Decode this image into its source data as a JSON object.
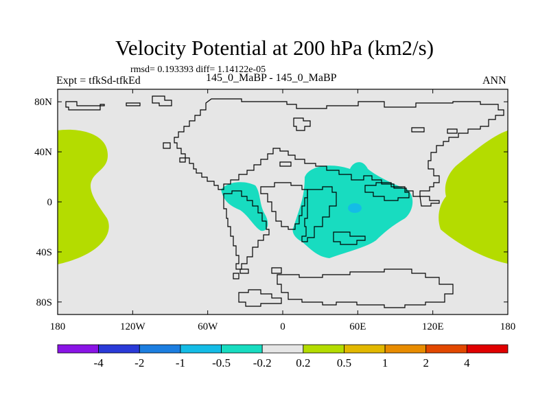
{
  "chart_data": {
    "type": "contour-map",
    "title": "Velocity Potential at 200 hPa (km2/s)",
    "stats_label": "rmsd= 0.193393 diff= 1.14122e-05",
    "left_label": "Expt = tfkSd-tfkEd",
    "center_label": "145_0_MaBP - 145_0_MaBP",
    "right_label": "ANN",
    "x_range": [
      -180,
      180
    ],
    "y_range": [
      -90,
      90
    ],
    "x_ticks": [
      {
        "value": -180,
        "label": "180"
      },
      {
        "value": -120,
        "label": "120W"
      },
      {
        "value": -60,
        "label": "60W"
      },
      {
        "value": 0,
        "label": "0"
      },
      {
        "value": 60,
        "label": "60E"
      },
      {
        "value": 120,
        "label": "120E"
      },
      {
        "value": 180,
        "label": "180"
      }
    ],
    "y_ticks": [
      {
        "value": 80,
        "label": "80N"
      },
      {
        "value": 40,
        "label": "40N"
      },
      {
        "value": 0,
        "label": "0"
      },
      {
        "value": -40,
        "label": "40S"
      },
      {
        "value": -80,
        "label": "80S"
      }
    ],
    "background_color": "#e6e6e6",
    "colorbar": {
      "colors": [
        "#8a14e6",
        "#2a3ad8",
        "#1c7ee0",
        "#14bce6",
        "#18dcc0",
        "#e6e6e6",
        "#b4dc00",
        "#e2b800",
        "#e88c00",
        "#e24800",
        "#e00000"
      ],
      "labels": [
        "-4",
        "-2",
        "-1",
        "-0.5",
        "-0.2",
        "0.2",
        "0.5",
        "1",
        "2",
        "4"
      ]
    },
    "filled_regions": [
      {
        "name": "positive-west",
        "level": "0.2 to 0.5",
        "color": "#b4dc00"
      },
      {
        "name": "positive-east",
        "level": "0.2 to 0.5",
        "color": "#b4dc00"
      },
      {
        "name": "negative-south-america",
        "level": "-0.5 to -0.2",
        "color": "#18dcc0"
      },
      {
        "name": "negative-africa",
        "level": "-0.5 to -0.2",
        "color": "#18dcc0"
      },
      {
        "name": "negative-core",
        "level": "-1 to -0.5",
        "color": "#14bce6"
      }
    ]
  }
}
